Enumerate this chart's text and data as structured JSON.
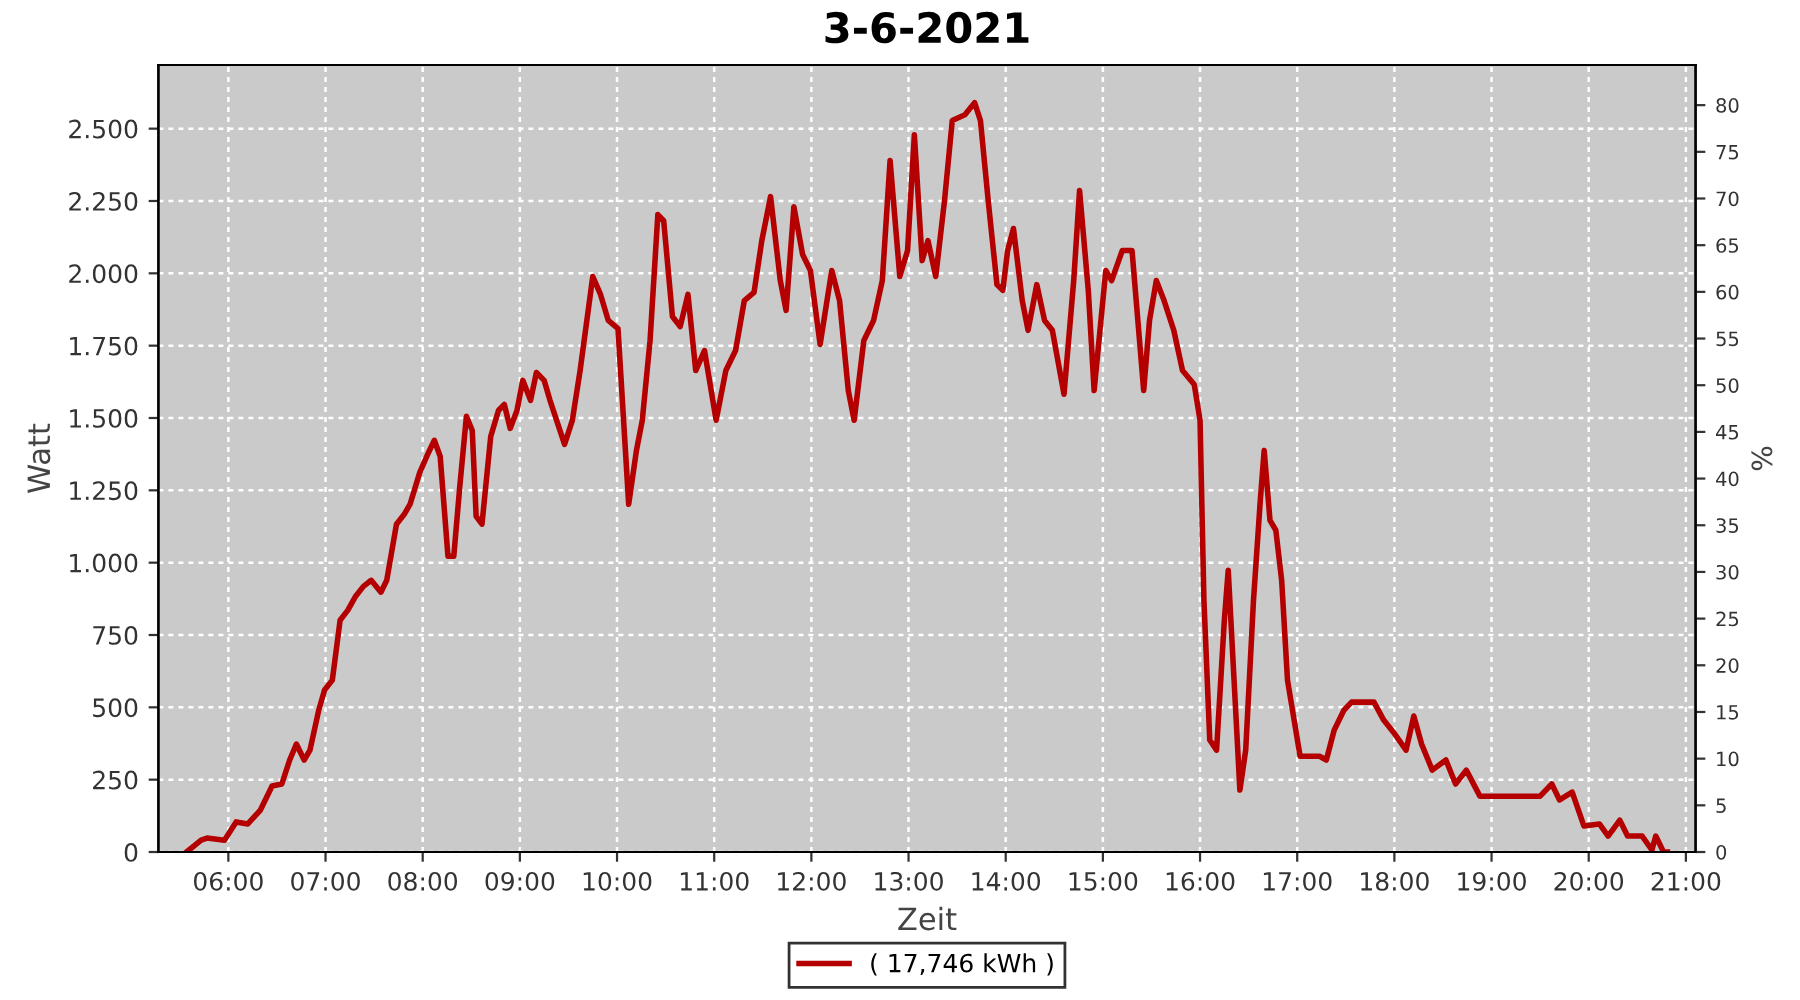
{
  "chart_data": {
    "type": "line",
    "title": "3-6-2021",
    "xlabel": "Zeit",
    "ylabel": "Watt",
    "y2label": "%",
    "x": [
      5.57,
      5.72,
      5.78,
      5.96,
      6.08,
      6.2,
      6.33,
      6.45,
      6.55,
      6.63,
      6.7,
      6.78,
      6.84,
      6.93,
      6.99,
      7.07,
      7.15,
      7.23,
      7.31,
      7.39,
      7.47,
      7.57,
      7.63,
      7.73,
      7.81,
      7.87,
      7.97,
      8.06,
      8.12,
      8.18,
      8.26,
      8.32,
      8.38,
      8.45,
      8.51,
      8.55,
      8.61,
      8.7,
      8.78,
      8.84,
      8.9,
      8.97,
      9.03,
      9.11,
      9.17,
      9.25,
      9.31,
      9.46,
      9.54,
      9.62,
      9.75,
      9.83,
      9.91,
      10.01,
      10.12,
      10.2,
      10.26,
      10.34,
      10.42,
      10.48,
      10.57,
      10.65,
      10.73,
      10.81,
      10.9,
      11.02,
      11.12,
      11.22,
      11.31,
      11.41,
      11.49,
      11.58,
      11.68,
      11.74,
      11.82,
      11.91,
      11.99,
      12.09,
      12.21,
      12.29,
      12.38,
      12.44,
      12.54,
      12.64,
      12.73,
      12.81,
      12.91,
      12.99,
      13.06,
      13.14,
      13.2,
      13.28,
      13.37,
      13.45,
      13.58,
      13.68,
      13.74,
      13.82,
      13.91,
      13.97,
      14.02,
      14.08,
      14.17,
      14.23,
      14.32,
      14.4,
      14.48,
      14.6,
      14.7,
      14.76,
      14.85,
      14.91,
      15.03,
      15.09,
      15.2,
      15.3,
      15.36,
      15.42,
      15.48,
      15.55,
      15.63,
      15.73,
      15.82,
      15.94,
      16.0,
      16.04,
      16.1,
      16.17,
      16.25,
      16.29,
      16.35,
      16.41,
      16.47,
      16.55,
      16.62,
      16.66,
      16.72,
      16.78,
      16.84,
      16.9,
      17.03,
      17.23,
      17.3,
      17.38,
      17.48,
      17.56,
      17.79,
      17.89,
      17.99,
      18.12,
      18.2,
      18.28,
      18.39,
      18.53,
      18.63,
      18.74,
      18.88,
      19.09,
      19.5,
      19.62,
      19.7,
      19.83,
      19.95,
      20.11,
      20.2,
      20.32,
      20.4,
      20.55,
      20.65,
      20.69,
      20.77,
      20.81
    ],
    "series": [
      {
        "name": "( 17,746 kWh )",
        "color": "#b40000",
        "values": [
          0,
          41,
          48,
          41,
          104,
          97,
          145,
          228,
          235,
          317,
          373,
          318,
          352,
          490,
          560,
          594,
          801,
          836,
          884,
          918,
          939,
          898,
          939,
          1133,
          1167,
          1202,
          1312,
          1381,
          1423,
          1367,
          1022,
          1022,
          1257,
          1506,
          1457,
          1160,
          1133,
          1436,
          1526,
          1547,
          1464,
          1526,
          1630,
          1561,
          1657,
          1630,
          1561,
          1409,
          1492,
          1664,
          1989,
          1927,
          1837,
          1809,
          1202,
          1388,
          1492,
          1768,
          2203,
          2182,
          1851,
          1816,
          1927,
          1664,
          1733,
          1492,
          1664,
          1733,
          1906,
          1934,
          2113,
          2265,
          1975,
          1872,
          2230,
          2065,
          2010,
          1754,
          2010,
          1906,
          1595,
          1492,
          1768,
          1837,
          1975,
          2390,
          1989,
          2079,
          2479,
          2044,
          2113,
          1989,
          2251,
          2528,
          2548,
          2590,
          2528,
          2251,
          1961,
          1941,
          2079,
          2155,
          1906,
          1803,
          1961,
          1837,
          1803,
          1582,
          1975,
          2286,
          1941,
          1595,
          2010,
          1975,
          2079,
          2079,
          1837,
          1595,
          1837,
          1975,
          1906,
          1803,
          1664,
          1616,
          1492,
          870,
          387,
          352,
          801,
          974,
          594,
          214,
          352,
          870,
          1215,
          1388,
          1146,
          1112,
          939,
          594,
          331,
          331,
          318,
          421,
          490,
          518,
          518,
          456,
          414,
          352,
          470,
          373,
          283,
          318,
          235,
          283,
          193,
          193,
          193,
          235,
          180,
          207,
          90,
          97,
          55,
          110,
          55,
          55,
          7,
          55,
          0,
          0
        ]
      }
    ],
    "xlim": [
      5.28,
      21.1
    ],
    "xticks": [
      {
        "value": 6,
        "label": "06:00"
      },
      {
        "value": 7,
        "label": "07:00"
      },
      {
        "value": 8,
        "label": "08:00"
      },
      {
        "value": 9,
        "label": "09:00"
      },
      {
        "value": 10,
        "label": "10:00"
      },
      {
        "value": 11,
        "label": "11:00"
      },
      {
        "value": 12,
        "label": "12:00"
      },
      {
        "value": 13,
        "label": "13:00"
      },
      {
        "value": 14,
        "label": "14:00"
      },
      {
        "value": 15,
        "label": "15:00"
      },
      {
        "value": 16,
        "label": "16:00"
      },
      {
        "value": 17,
        "label": "17:00"
      },
      {
        "value": 18,
        "label": "18:00"
      },
      {
        "value": 19,
        "label": "19:00"
      },
      {
        "value": 20,
        "label": "20:00"
      },
      {
        "value": 21,
        "label": "21:00"
      }
    ],
    "ylim": [
      0,
      2720
    ],
    "yticks": [
      0,
      {
        "value": 250,
        "label": "250"
      },
      {
        "value": 500,
        "label": "500"
      },
      {
        "value": 750,
        "label": "750"
      },
      {
        "value": 1000,
        "label": "1.000"
      },
      {
        "value": 1250,
        "label": "1.250"
      },
      {
        "value": 1500,
        "label": "1.500"
      },
      {
        "value": 1750,
        "label": "1.750"
      },
      {
        "value": 2000,
        "label": "2.000"
      },
      {
        "value": 2250,
        "label": "2.250"
      },
      {
        "value": 2500,
        "label": "2.500"
      }
    ],
    "y2lim": [
      0,
      84.3
    ],
    "y2ticks": [
      0,
      5,
      10,
      15,
      20,
      25,
      30,
      35,
      40,
      45,
      50,
      55,
      60,
      65,
      70,
      75,
      80
    ],
    "grid": true,
    "legend": "bottom",
    "marker": "none",
    "line_style": "solid"
  }
}
